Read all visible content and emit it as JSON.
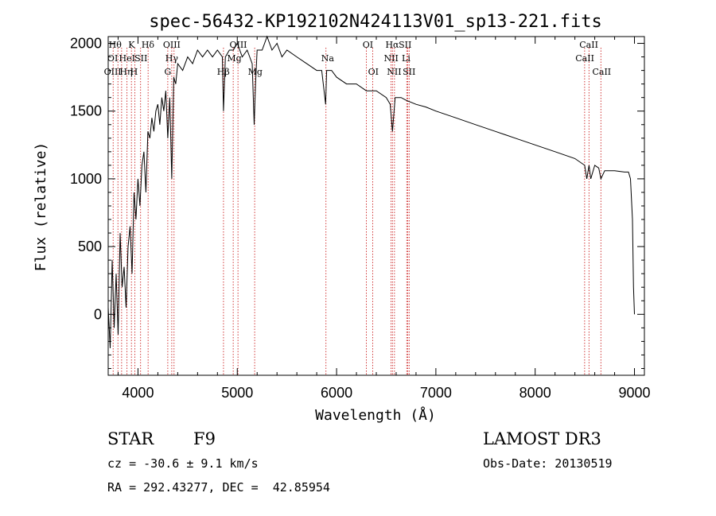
{
  "chart_data": {
    "type": "line",
    "title": "spec-56432-KP192102N424113V01_sp13-221.fits",
    "xlabel": "Wavelength (Å)",
    "ylabel": "Flux (relative)",
    "xlim": [
      3700,
      9100
    ],
    "ylim": [
      -450,
      2050
    ],
    "x_ticks": [
      4000,
      5000,
      6000,
      7000,
      8000,
      9000
    ],
    "y_ticks": [
      0,
      500,
      1000,
      1500,
      2000
    ],
    "grid": false,
    "series": [
      {
        "name": "flux",
        "x": [
          3700,
          3720,
          3740,
          3760,
          3780,
          3800,
          3820,
          3840,
          3860,
          3880,
          3900,
          3920,
          3940,
          3960,
          3980,
          4000,
          4020,
          4040,
          4060,
          4080,
          4100,
          4120,
          4140,
          4160,
          4180,
          4200,
          4220,
          4240,
          4260,
          4280,
          4300,
          4320,
          4340,
          4360,
          4380,
          4400,
          4450,
          4500,
          4550,
          4600,
          4650,
          4700,
          4750,
          4800,
          4850,
          4861,
          4880,
          4920,
          4960,
          5000,
          5050,
          5100,
          5150,
          5170,
          5184,
          5200,
          5250,
          5300,
          5350,
          5400,
          5450,
          5500,
          5600,
          5700,
          5800,
          5850,
          5890,
          5900,
          5950,
          6000,
          6100,
          6200,
          6300,
          6400,
          6500,
          6540,
          6563,
          6590,
          6650,
          6700,
          6800,
          6900,
          7000,
          7200,
          7400,
          7600,
          7800,
          8000,
          8200,
          8400,
          8498,
          8520,
          8542,
          8560,
          8600,
          8640,
          8662,
          8700,
          8800,
          8900,
          8940,
          8960,
          8980,
          8990,
          9000
        ],
        "values": [
          50,
          -250,
          400,
          -100,
          300,
          -150,
          600,
          200,
          350,
          50,
          500,
          650,
          300,
          900,
          700,
          1000,
          800,
          1100,
          1200,
          900,
          1350,
          1300,
          1450,
          1350,
          1500,
          1550,
          1400,
          1600,
          1500,
          1650,
          1300,
          1600,
          1000,
          1750,
          1700,
          1850,
          1800,
          1900,
          1850,
          1950,
          1900,
          1950,
          1900,
          1950,
          1900,
          1500,
          1900,
          1950,
          1950,
          2000,
          1900,
          1950,
          1850,
          1400,
          1700,
          1950,
          1950,
          2050,
          1950,
          2000,
          1900,
          1950,
          1900,
          1850,
          1800,
          1800,
          1550,
          1800,
          1800,
          1750,
          1700,
          1700,
          1650,
          1650,
          1600,
          1550,
          1350,
          1600,
          1600,
          1580,
          1550,
          1530,
          1500,
          1450,
          1400,
          1350,
          1300,
          1250,
          1200,
          1150,
          1100,
          1000,
          1100,
          1000,
          1100,
          1080,
          1000,
          1060,
          1060,
          1050,
          1050,
          1000,
          700,
          200,
          0
        ]
      }
    ],
    "line_marks": [
      {
        "wavelength": 3750,
        "labels": []
      },
      {
        "wavelength": 3798,
        "labels": []
      },
      {
        "wavelength": 3835,
        "labels": []
      },
      {
        "wavelength": 3889,
        "labels": [
          "Hθ",
          "He",
          "Hη"
        ]
      },
      {
        "wavelength": 3934,
        "labels": [
          "K",
          "HeI",
          "H"
        ]
      },
      {
        "wavelength": 3968,
        "labels": []
      },
      {
        "wavelength": 4026,
        "labels": [
          "SII"
        ]
      },
      {
        "wavelength": 4102,
        "labels": [
          "Hδ"
        ]
      },
      {
        "wavelength": 4300,
        "labels": [
          "G"
        ]
      },
      {
        "wavelength": 4340,
        "labels": [
          "OIII",
          "Hγ"
        ]
      },
      {
        "wavelength": 4363,
        "labels": []
      },
      {
        "wavelength": 4861,
        "labels": [
          "Hβ"
        ]
      },
      {
        "wavelength": 4959,
        "labels": [
          "OIII",
          "Mg"
        ]
      },
      {
        "wavelength": 5007,
        "labels": []
      },
      {
        "wavelength": 5175,
        "labels": [
          "Mg"
        ]
      },
      {
        "wavelength": 5893,
        "labels": [
          "Na"
        ]
      },
      {
        "wavelength": 6300,
        "labels": [
          "OI"
        ]
      },
      {
        "wavelength": 6364,
        "labels": [
          "OI"
        ]
      },
      {
        "wavelength": 6548,
        "labels": [
          "NII"
        ]
      },
      {
        "wavelength": 6563,
        "labels": [
          "Hα"
        ]
      },
      {
        "wavelength": 6583,
        "labels": []
      },
      {
        "wavelength": 6707,
        "labels": [
          "Li"
        ]
      },
      {
        "wavelength": 6717,
        "labels": [
          "SII"
        ]
      },
      {
        "wavelength": 6731,
        "labels": [
          "SII"
        ]
      },
      {
        "wavelength": 8498,
        "labels": [
          "CaII"
        ]
      },
      {
        "wavelength": 8542,
        "labels": [
          "CaII"
        ]
      },
      {
        "wavelength": 8662,
        "labels": [
          "CaII"
        ]
      }
    ],
    "top_labels": [
      {
        "text": "Hθ",
        "wavelength": 3770,
        "row": 0
      },
      {
        "text": "K",
        "wavelength": 3935,
        "row": 0
      },
      {
        "text": "Hδ",
        "wavelength": 4100,
        "row": 0
      },
      {
        "text": "OIII",
        "wavelength": 4340,
        "row": 0
      },
      {
        "text": "OIII",
        "wavelength": 5010,
        "row": 0
      },
      {
        "text": "OI",
        "wavelength": 6315,
        "row": 0
      },
      {
        "text": "Hα",
        "wavelength": 6560,
        "row": 0
      },
      {
        "text": "SII",
        "wavelength": 6690,
        "row": 0
      },
      {
        "text": "CaII",
        "wavelength": 8540,
        "row": 0
      },
      {
        "text": "OI",
        "wavelength": 3745,
        "row": 1
      },
      {
        "text": "HeI",
        "wavelength": 3890,
        "row": 1
      },
      {
        "text": "SII",
        "wavelength": 4030,
        "row": 1
      },
      {
        "text": "Hγ",
        "wavelength": 4340,
        "row": 1
      },
      {
        "text": "Mg",
        "wavelength": 4970,
        "row": 1
      },
      {
        "text": "Na",
        "wavelength": 5910,
        "row": 1
      },
      {
        "text": "NII",
        "wavelength": 6550,
        "row": 1
      },
      {
        "text": "Li",
        "wavelength": 6700,
        "row": 1
      },
      {
        "text": "CaII",
        "wavelength": 8500,
        "row": 1
      },
      {
        "text": "OIII",
        "wavelength": 3745,
        "row": 2
      },
      {
        "text": "Hη",
        "wavelength": 3880,
        "row": 2
      },
      {
        "text": "H",
        "wavelength": 3960,
        "row": 2
      },
      {
        "text": "G",
        "wavelength": 4300,
        "row": 2
      },
      {
        "text": "Hβ",
        "wavelength": 4860,
        "row": 2
      },
      {
        "text": "Mg",
        "wavelength": 5180,
        "row": 2
      },
      {
        "text": "OI",
        "wavelength": 6370,
        "row": 2
      },
      {
        "text": "NII",
        "wavelength": 6580,
        "row": 2
      },
      {
        "text": "SII",
        "wavelength": 6730,
        "row": 2
      },
      {
        "text": "CaII",
        "wavelength": 8670,
        "row": 2
      }
    ],
    "colors": {
      "spectrum": "#000000",
      "line_marks": "#cc2222",
      "axes": "#000000"
    }
  },
  "info": {
    "object_class": "STAR",
    "subclass": "F9",
    "survey": "LAMOST DR3",
    "redshift_text": "cz = -30.6 ± 9.1 km/s",
    "obs_date": "Obs-Date: 20130519",
    "coords": "RA = 292.43277, DEC =  42.85954"
  }
}
